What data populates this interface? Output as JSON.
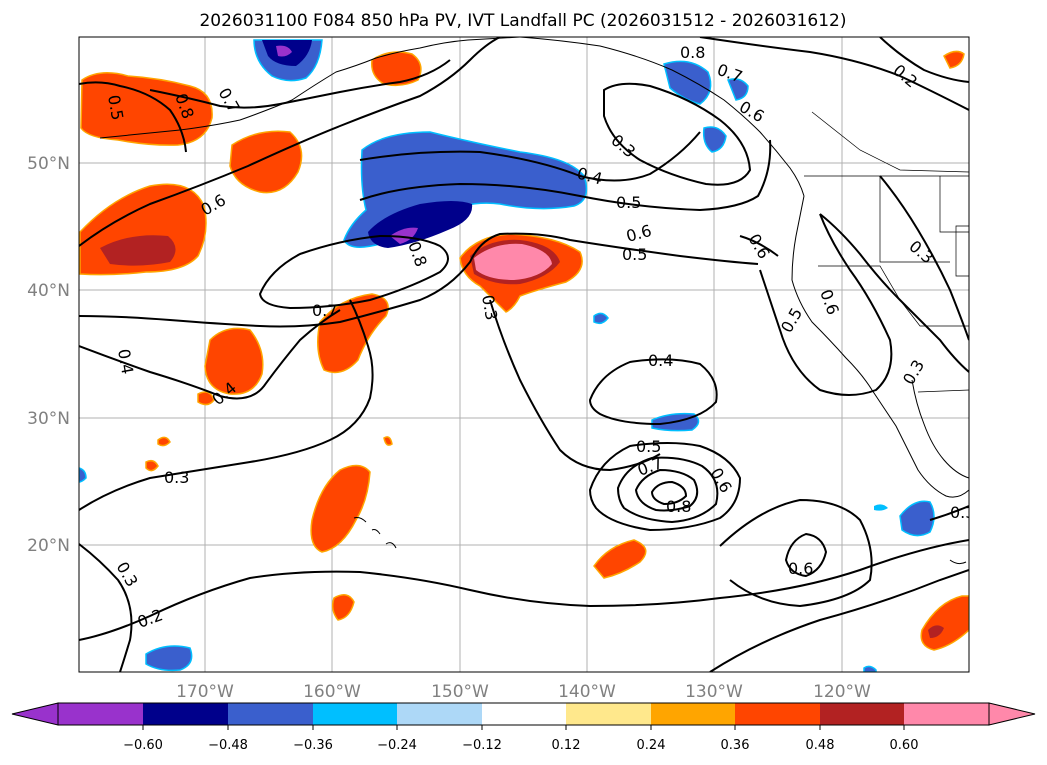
{
  "title": "2026031100 F084 850 hPa PV, IVT Landfall PC (2026031512 - 2026031612)",
  "map": {
    "lon_ticks": [
      "170°W",
      "160°W",
      "150°W",
      "140°W",
      "130°W",
      "120°W"
    ],
    "lat_ticks": [
      "50°N",
      "40°N",
      "30°N",
      "20°N"
    ],
    "grid": true
  },
  "colorbar": {
    "tick_labels": [
      "−0.60",
      "−0.48",
      "−0.36",
      "−0.24",
      "−0.12",
      "0.12",
      "0.24",
      "0.36",
      "0.48",
      "0.60"
    ],
    "colors": [
      "#9932cc",
      "#00008b",
      "#3a5fcd",
      "#00bfff",
      "#add8f7",
      "#ffffff",
      "#ffe88c",
      "#ffa500",
      "#ff4500",
      "#b22222",
      "#ff88aa"
    ],
    "extend": "both"
  },
  "contour_labels": [
    "0.8",
    "0.7",
    "0.6",
    "0.5",
    "0.4",
    "0.3",
    "0.2",
    "0.8",
    "0.7",
    "0.6",
    "0.5",
    "0.4",
    "0.3",
    "0.6",
    "0.5",
    "0.6",
    "0.5",
    "0.7",
    "0.8",
    "0.4",
    "0.3",
    "0.4",
    "0.3",
    "0.3",
    "0.2",
    "0.6",
    "0.5",
    "0.6",
    "0.7",
    "0.8",
    "0.6",
    "0.3",
    "0.3"
  ]
}
